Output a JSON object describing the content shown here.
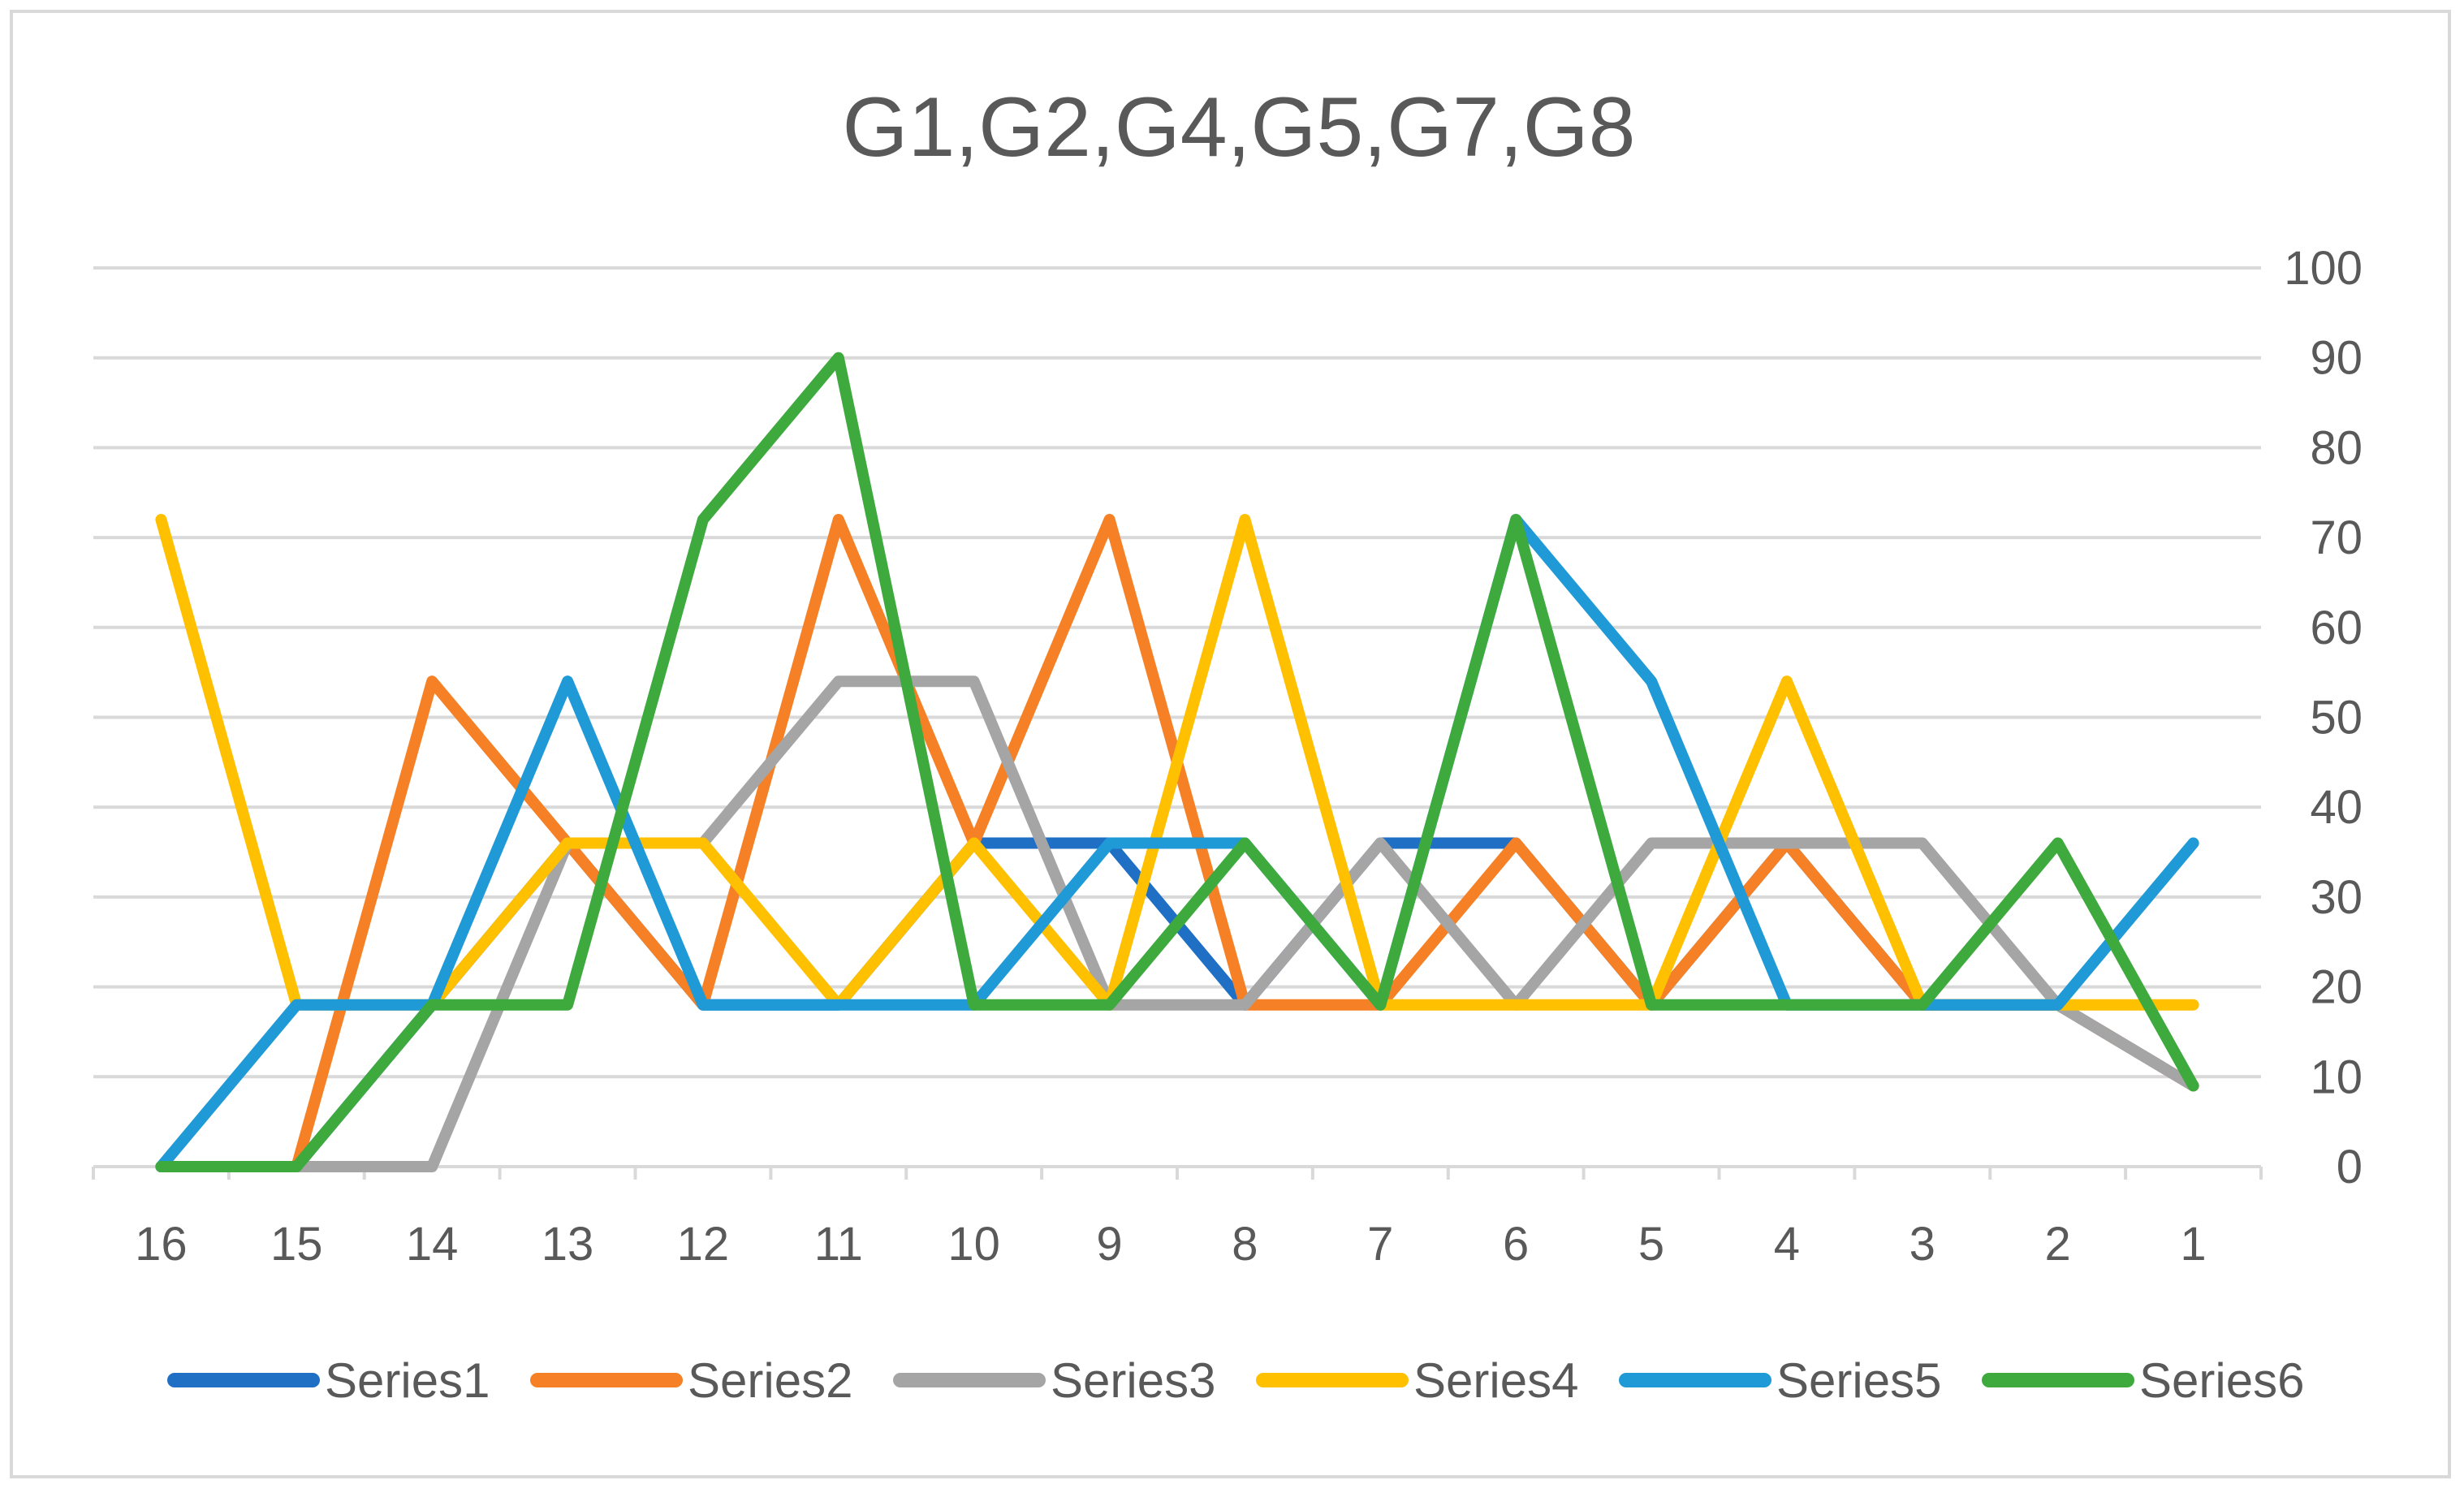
{
  "chart_data": {
    "type": "line",
    "title": "G1,G2,G4,G5,G7,G8",
    "categories": [
      "16",
      "15",
      "14",
      "13",
      "12",
      "11",
      "10",
      "9",
      "8",
      "7",
      "6",
      "5",
      "4",
      "3",
      "2",
      "1"
    ],
    "y_ticks": [
      "0",
      "10",
      "20",
      "30",
      "40",
      "50",
      "60",
      "70",
      "80",
      "90",
      "100"
    ],
    "ylim": [
      0,
      100
    ],
    "y_axis_position": "right",
    "grid": true,
    "legend_position": "bottom",
    "series": [
      {
        "name": "Series1",
        "color": "#1f6fc5",
        "values": [
          0,
          0,
          18,
          36,
          18,
          18,
          36,
          36,
          18,
          36,
          36,
          18,
          36,
          18,
          18,
          9
        ]
      },
      {
        "name": "Series2",
        "color": "#f58025",
        "values": [
          0,
          0,
          54,
          36,
          18,
          72,
          36,
          72,
          18,
          18,
          36,
          18,
          36,
          18,
          18,
          9
        ]
      },
      {
        "name": "Series3",
        "color": "#a5a5a5",
        "values": [
          0,
          0,
          0,
          36,
          36,
          54,
          54,
          18,
          18,
          36,
          18,
          36,
          36,
          36,
          18,
          9
        ]
      },
      {
        "name": "Series4",
        "color": "#ffc000",
        "values": [
          72,
          18,
          18,
          36,
          36,
          18,
          36,
          18,
          72,
          18,
          18,
          18,
          54,
          18,
          18,
          18
        ]
      },
      {
        "name": "Series5",
        "color": "#1f9ad6",
        "values": [
          0,
          18,
          18,
          54,
          18,
          18,
          18,
          36,
          36,
          18,
          72,
          54,
          18,
          18,
          18,
          36
        ]
      },
      {
        "name": "Series6",
        "color": "#3eaa3e",
        "values": [
          0,
          0,
          18,
          18,
          72,
          90,
          18,
          18,
          36,
          18,
          72,
          18,
          18,
          18,
          36,
          9
        ]
      }
    ]
  }
}
